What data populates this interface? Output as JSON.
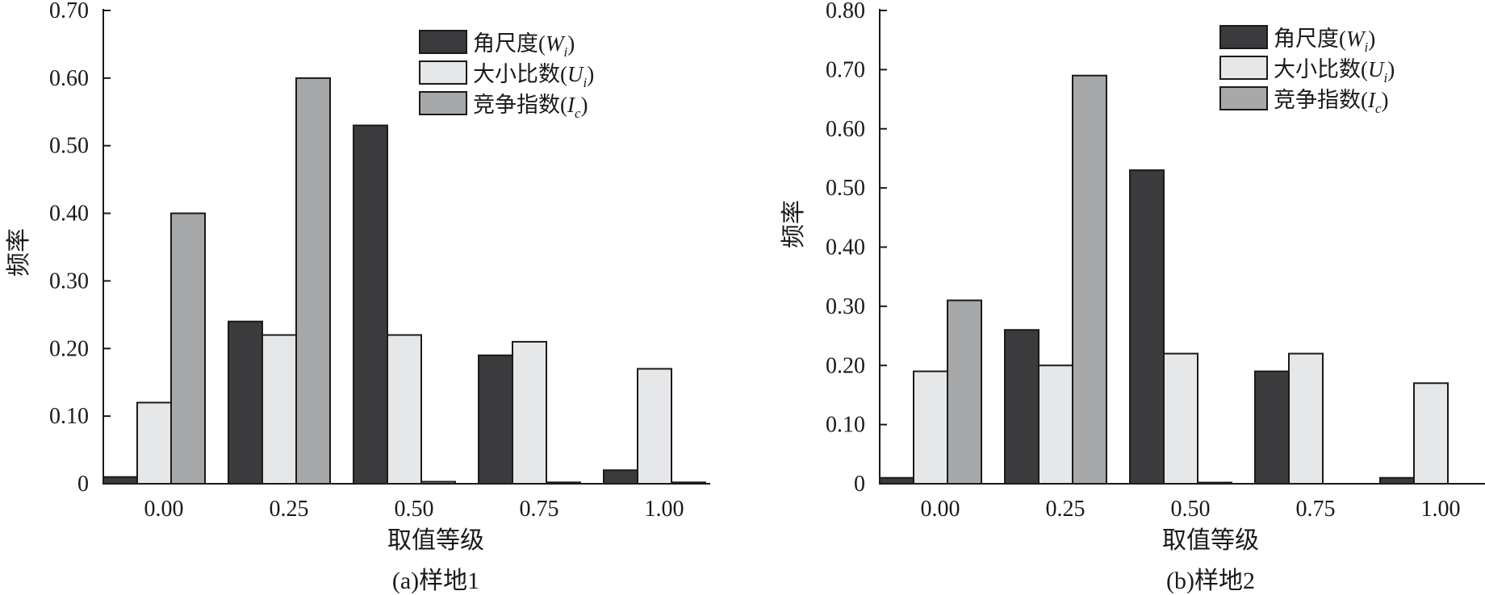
{
  "colors": {
    "Wi": "#3b3b3d",
    "Ui": "#e6e7e9",
    "Ic": "#a7a8aa"
  },
  "legend": [
    {
      "key": "Wi",
      "label": "角尺度(",
      "sym": "W",
      "sub": "i",
      "close": ")"
    },
    {
      "key": "Ui",
      "label": "大小比数(",
      "sym": "U",
      "sub": "i",
      "close": ")"
    },
    {
      "key": "Ic",
      "label": "竞争指数(",
      "sym": "I",
      "sub": "c",
      "close": ")"
    }
  ],
  "chart_data": [
    {
      "type": "bar",
      "caption": "(a)样地1",
      "xlabel": "取值等级",
      "ylabel": "频率",
      "categories": [
        "0.00",
        "0.25",
        "0.50",
        "0.75",
        "1.00"
      ],
      "ylim": [
        0,
        0.7
      ],
      "yticks": [
        "0",
        "0.10",
        "0.20",
        "0.30",
        "0.40",
        "0.50",
        "0.60",
        "0.70"
      ],
      "series": [
        {
          "key": "Wi",
          "values": [
            0.01,
            0.24,
            0.53,
            0.19,
            0.02
          ]
        },
        {
          "key": "Ui",
          "values": [
            0.12,
            0.22,
            0.22,
            0.21,
            0.17
          ]
        },
        {
          "key": "Ic",
          "values": [
            0.4,
            0.6,
            0.003,
            0.002,
            0.002
          ]
        }
      ]
    },
    {
      "type": "bar",
      "caption": "(b)样地2",
      "xlabel": "取值等级",
      "ylabel": "频率",
      "categories": [
        "0.00",
        "0.25",
        "0.50",
        "0.75",
        "1.00"
      ],
      "ylim": [
        0,
        0.8
      ],
      "yticks": [
        "0",
        "0.10",
        "0.20",
        "0.30",
        "0.40",
        "0.50",
        "0.60",
        "0.70",
        "0.80"
      ],
      "series": [
        {
          "key": "Wi",
          "values": [
            0.01,
            0.26,
            0.53,
            0.19,
            0.01
          ]
        },
        {
          "key": "Ui",
          "values": [
            0.19,
            0.2,
            0.22,
            0.22,
            0.17
          ]
        },
        {
          "key": "Ic",
          "values": [
            0.31,
            0.69,
            0.002,
            0.0,
            0.0
          ]
        }
      ]
    }
  ]
}
